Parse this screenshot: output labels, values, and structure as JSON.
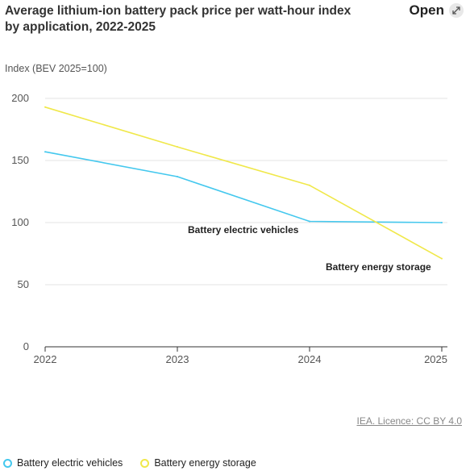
{
  "header": {
    "title": "Average lithium-ion battery pack price per watt-hour index by application, 2022-2025",
    "open_label": "Open",
    "open_icon": "expand-icon"
  },
  "footer": {
    "licence": "IEA. Licence: CC BY 4.0"
  },
  "colors": {
    "bev": "#44c8ee",
    "storage": "#f0e84a",
    "grid": "#e3e3e3",
    "axis": "#333333"
  },
  "chart_data": {
    "type": "line",
    "title": "Average lithium-ion battery pack price per watt-hour index by application, 2022-2025",
    "xlabel": "",
    "ylabel": "Index (BEV 2025=100)",
    "x": [
      "2022",
      "2023",
      "2024",
      "2025"
    ],
    "ylim": [
      0,
      200
    ],
    "yticks": [
      "0",
      "50",
      "100",
      "150",
      "200"
    ],
    "grid": true,
    "legend_position": "bottom",
    "series": [
      {
        "name": "Battery electric vehicles",
        "color": "#44c8ee",
        "values": [
          157,
          137,
          101,
          100
        ],
        "annotation": "Battery electric vehicles"
      },
      {
        "name": "Battery energy storage",
        "color": "#f0e84a",
        "values": [
          193,
          161,
          130,
          71
        ],
        "annotation": "Battery energy storage"
      }
    ]
  }
}
